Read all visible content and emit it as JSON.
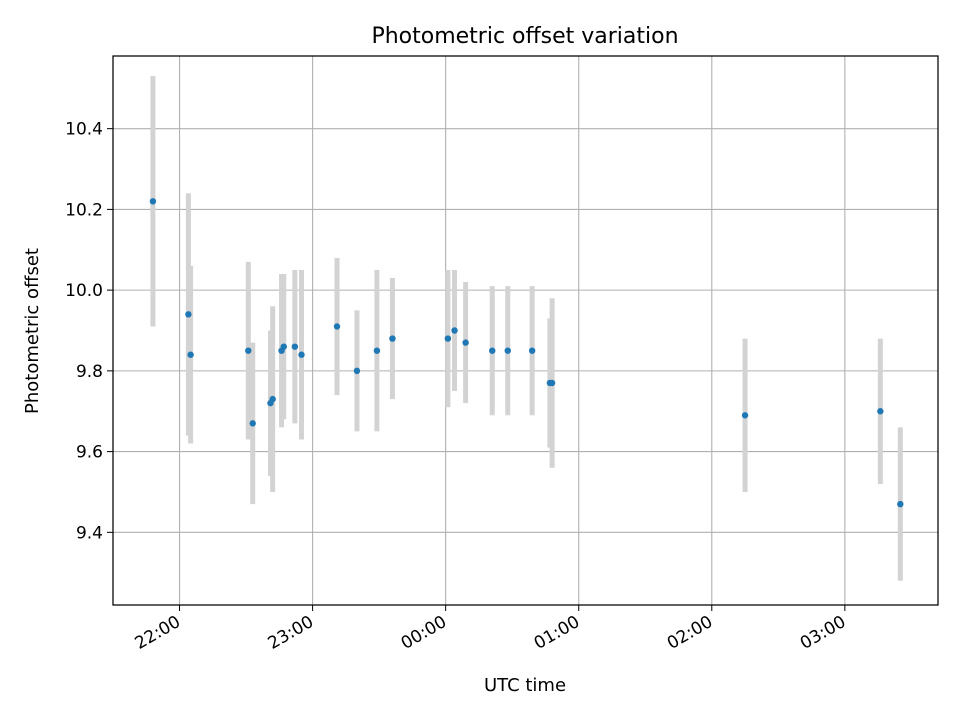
{
  "chart_data": {
    "type": "scatter",
    "title": "Photometric offset variation",
    "xlabel": "UTC time",
    "ylabel": "Photometric offset",
    "x_axis_type": "time",
    "x_reference_date": "2000-01-01",
    "xlim": [
      "2000-01-01T21:30",
      "2000-01-02T03:42"
    ],
    "ylim": [
      9.22,
      10.58
    ],
    "xticks": [
      "22:00",
      "23:00",
      "00:00",
      "01:00",
      "02:00",
      "03:00"
    ],
    "yticks": [
      "9.4",
      "9.6",
      "9.8",
      "10.0",
      "10.2",
      "10.4"
    ],
    "grid": true,
    "marker_color": "#1f77b4",
    "errorbar_color": "#d3d3d3",
    "points": [
      {
        "x": "21:48",
        "y": 10.22,
        "yerr": 0.31
      },
      {
        "x": "22:04",
        "y": 9.94,
        "yerr": 0.3
      },
      {
        "x": "22:05",
        "y": 9.84,
        "yerr": 0.22
      },
      {
        "x": "22:31",
        "y": 9.85,
        "yerr": 0.22
      },
      {
        "x": "22:33",
        "y": 9.67,
        "yerr": 0.2
      },
      {
        "x": "22:41",
        "y": 9.72,
        "yerr": 0.18
      },
      {
        "x": "22:42",
        "y": 9.73,
        "yerr": 0.23
      },
      {
        "x": "22:46",
        "y": 9.85,
        "yerr": 0.19
      },
      {
        "x": "22:47",
        "y": 9.86,
        "yerr": 0.18
      },
      {
        "x": "22:52",
        "y": 9.86,
        "yerr": 0.19
      },
      {
        "x": "22:55",
        "y": 9.84,
        "yerr": 0.21
      },
      {
        "x": "23:11",
        "y": 9.91,
        "yerr": 0.17
      },
      {
        "x": "23:20",
        "y": 9.8,
        "yerr": 0.15
      },
      {
        "x": "23:29",
        "y": 9.85,
        "yerr": 0.2
      },
      {
        "x": "23:36",
        "y": 9.88,
        "yerr": 0.15
      },
      {
        "x": "00:01",
        "y": 9.88,
        "yerr": 0.17
      },
      {
        "x": "00:04",
        "y": 9.9,
        "yerr": 0.15
      },
      {
        "x": "00:09",
        "y": 9.87,
        "yerr": 0.15
      },
      {
        "x": "00:21",
        "y": 9.85,
        "yerr": 0.16
      },
      {
        "x": "00:28",
        "y": 9.85,
        "yerr": 0.16
      },
      {
        "x": "00:39",
        "y": 9.85,
        "yerr": 0.16
      },
      {
        "x": "00:47",
        "y": 9.77,
        "yerr": 0.16
      },
      {
        "x": "00:48",
        "y": 9.77,
        "yerr": 0.21
      },
      {
        "x": "02:15",
        "y": 9.69,
        "yerr": 0.19
      },
      {
        "x": "03:16",
        "y": 9.7,
        "yerr": 0.18
      },
      {
        "x": "03:25",
        "y": 9.47,
        "yerr": 0.19
      }
    ]
  }
}
